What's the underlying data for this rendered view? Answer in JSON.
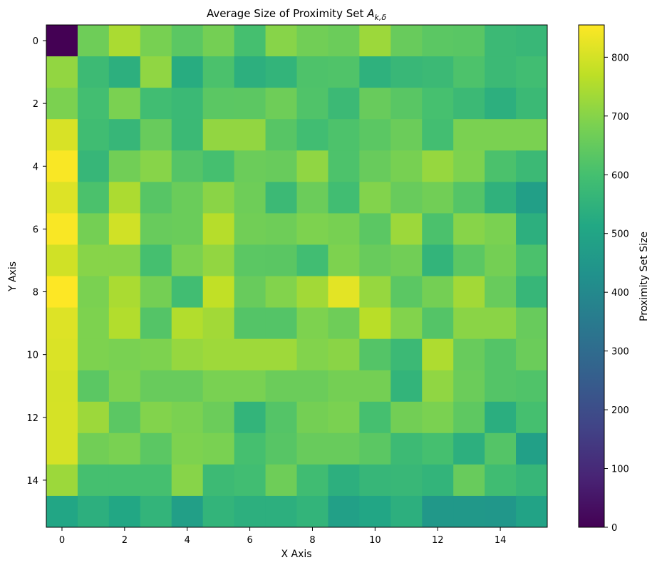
{
  "chart_data": {
    "type": "heatmap",
    "title": "Average Size of Proximity Set",
    "title_math_base": "A",
    "title_math_sub": "k,δ",
    "xlabel": "X Axis",
    "ylabel": "Y Axis",
    "x_ticks": [
      0,
      2,
      4,
      6,
      8,
      10,
      12,
      14
    ],
    "y_ticks": [
      0,
      2,
      4,
      6,
      8,
      10,
      12,
      14
    ],
    "colormap": "viridis",
    "colorbar": {
      "label": "Proximity Set Size",
      "range": [
        0,
        855
      ],
      "ticks": [
        0,
        100,
        200,
        300,
        400,
        500,
        600,
        700,
        800
      ]
    },
    "grid": false,
    "values": [
      [
        0,
        665,
        745,
        680,
        635,
        675,
        600,
        700,
        670,
        660,
        727,
        655,
        635,
        632,
        578,
        570
      ],
      [
        715,
        580,
        540,
        712,
        528,
        610,
        540,
        556,
        615,
        618,
        545,
        570,
        578,
        612,
        578,
        590
      ],
      [
        685,
        595,
        684,
        590,
        575,
        635,
        637,
        665,
        618,
        578,
        655,
        632,
        602,
        578,
        540,
        575
      ],
      [
        805,
        588,
        565,
        655,
        575,
        715,
        715,
        628,
        590,
        612,
        635,
        660,
        595,
        684,
        684,
        684
      ],
      [
        850,
        565,
        670,
        700,
        624,
        600,
        660,
        655,
        712,
        612,
        655,
        680,
        720,
        688,
        610,
        578
      ],
      [
        812,
        610,
        748,
        628,
        658,
        705,
        665,
        578,
        660,
        590,
        694,
        655,
        670,
        624,
        548,
        480
      ],
      [
        850,
        675,
        795,
        655,
        658,
        760,
        670,
        665,
        688,
        680,
        635,
        727,
        610,
        700,
        684,
        540
      ],
      [
        795,
        700,
        700,
        600,
        684,
        715,
        635,
        633,
        590,
        688,
        655,
        670,
        556,
        635,
        675,
        610
      ],
      [
        855,
        684,
        745,
        675,
        590,
        775,
        655,
        694,
        735,
        820,
        720,
        635,
        675,
        735,
        655,
        565
      ],
      [
        812,
        688,
        755,
        624,
        755,
        735,
        624,
        624,
        688,
        665,
        765,
        694,
        624,
        705,
        705,
        655
      ],
      [
        808,
        688,
        682,
        688,
        720,
        730,
        730,
        730,
        694,
        705,
        624,
        578,
        750,
        655,
        624,
        660
      ],
      [
        800,
        635,
        688,
        655,
        655,
        682,
        682,
        660,
        660,
        675,
        675,
        556,
        712,
        660,
        624,
        618
      ],
      [
        802,
        727,
        635,
        694,
        684,
        660,
        556,
        624,
        675,
        684,
        600,
        672,
        684,
        640,
        535,
        600
      ],
      [
        802,
        670,
        682,
        635,
        688,
        682,
        600,
        628,
        655,
        655,
        635,
        580,
        600,
        540,
        624,
        485
      ],
      [
        727,
        600,
        600,
        600,
        700,
        580,
        590,
        665,
        588,
        540,
        565,
        570,
        556,
        655,
        588,
        565
      ],
      [
        505,
        540,
        510,
        556,
        480,
        556,
        540,
        540,
        556,
        485,
        505,
        540,
        455,
        455,
        450,
        495
      ]
    ]
  }
}
